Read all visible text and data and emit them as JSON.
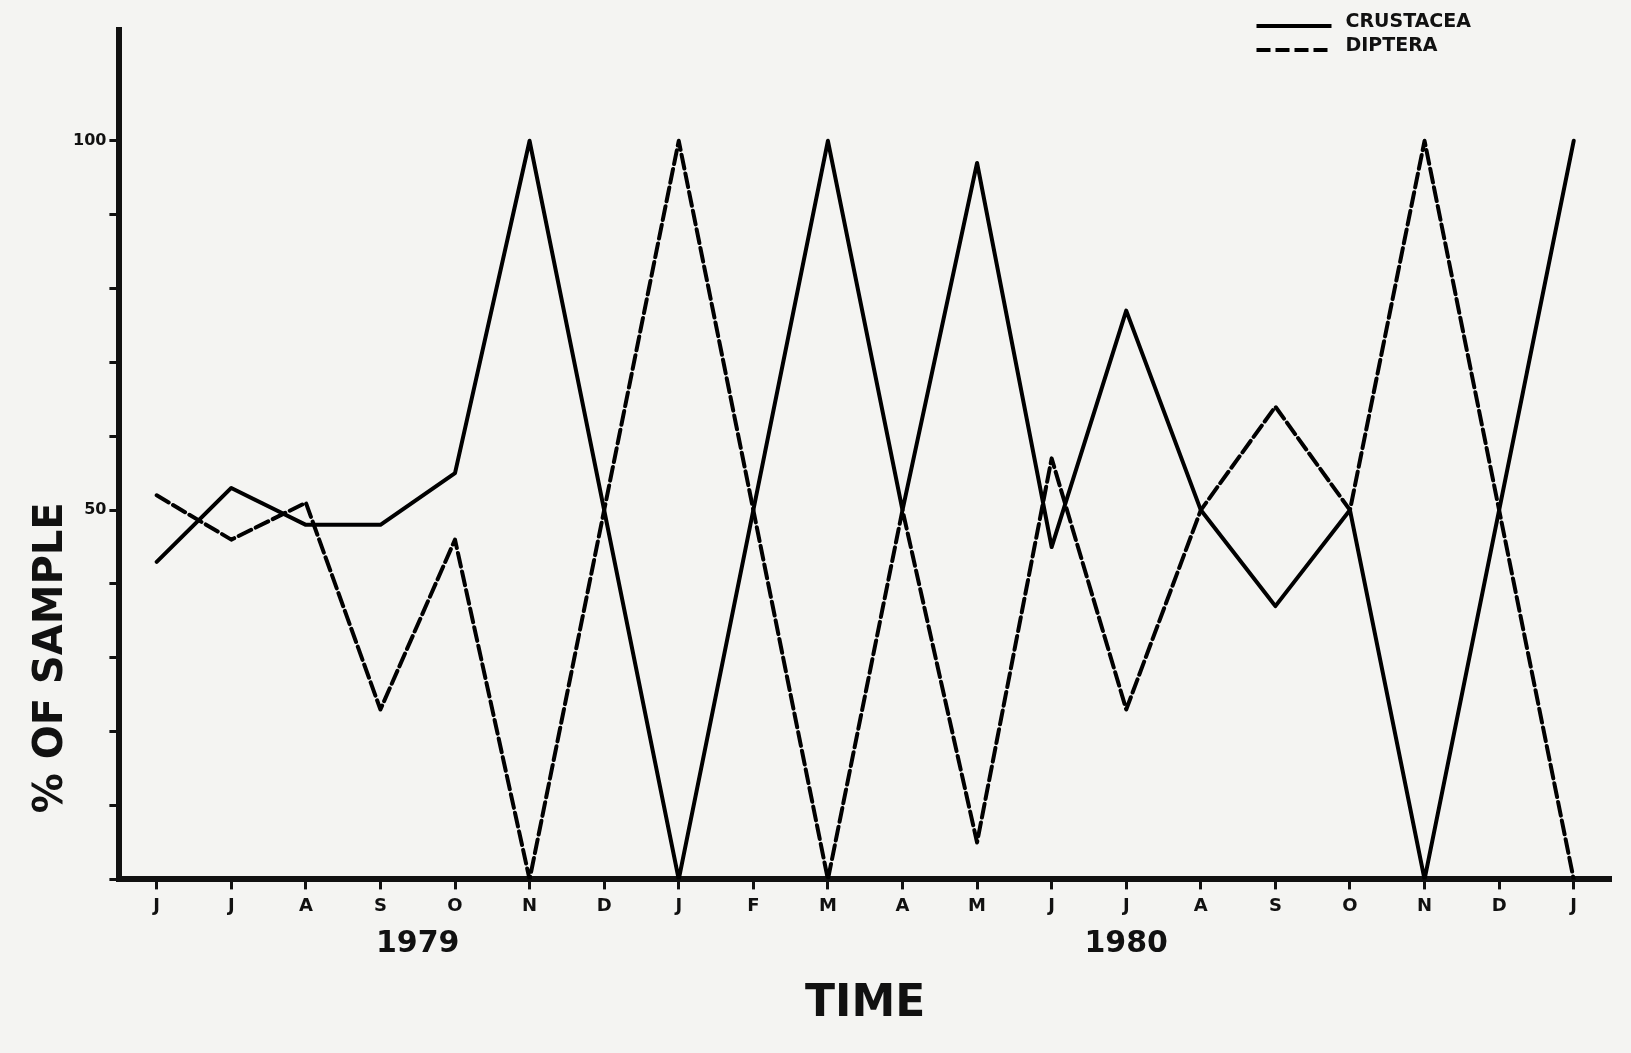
{
  "chart_data": {
    "type": "line",
    "categories": [
      "J",
      "J",
      "A",
      "S",
      "O",
      "N",
      "D",
      "J",
      "F",
      "M",
      "A",
      "M",
      "J",
      "J",
      "A",
      "S",
      "O",
      "N",
      "D",
      "J"
    ],
    "series": [
      {
        "name": "CRUSTACEA",
        "color": "#000000",
        "line_style": "solid",
        "values": [
          43,
          53,
          48,
          48,
          55,
          100,
          50,
          0,
          50,
          100,
          50,
          97,
          45,
          77,
          50,
          37,
          50,
          0,
          50,
          100
        ]
      },
      {
        "name": "DIPTERA",
        "color": "#000000",
        "line_style": "dashed",
        "values": [
          52,
          46,
          51,
          23,
          46,
          0,
          50,
          100,
          50,
          0,
          50,
          5,
          57,
          23,
          50,
          64,
          50,
          100,
          50,
          0
        ]
      }
    ],
    "xlabel": "TIME",
    "ylabel": "% OF SAMPLE",
    "ylim": [
      0,
      115
    ],
    "yticks": [
      {
        "value": 0,
        "label": null
      },
      {
        "value": 10,
        "label": null
      },
      {
        "value": 20,
        "label": null
      },
      {
        "value": 30,
        "label": null
      },
      {
        "value": 40,
        "label": null
      },
      50,
      {
        "value": 60,
        "label": null
      },
      {
        "value": 70,
        "label": null
      },
      {
        "value": 80,
        "label": null
      },
      {
        "value": 90,
        "label": null
      },
      100
    ],
    "annotations": [
      "1979",
      "1980"
    ],
    "grid": false,
    "legend": "top right",
    "marker": "none"
  }
}
